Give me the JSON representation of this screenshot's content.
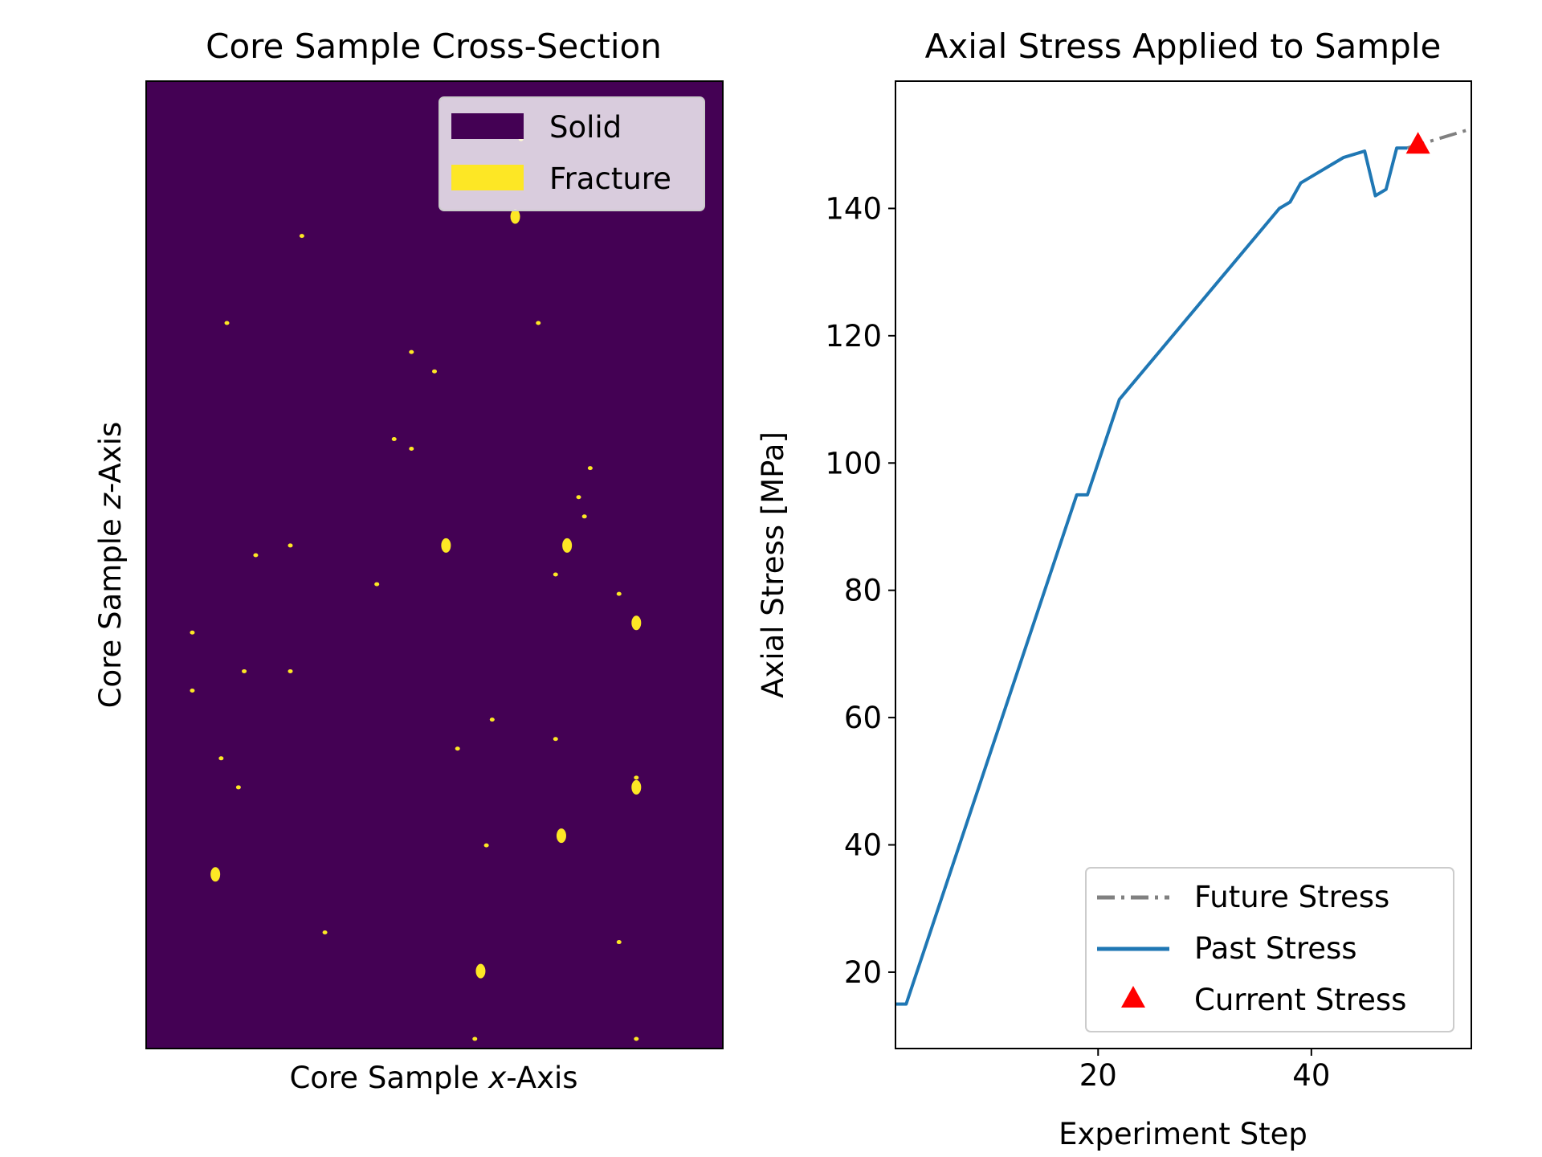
{
  "chart_data": [
    {
      "type": "heatmap",
      "title": "Core Sample Cross-Section",
      "xlabel_pre": "Core Sample ",
      "xlabel_var": "x",
      "xlabel_post": "-Axis",
      "ylabel_pre": "Core Sample ",
      "ylabel_var": "z",
      "ylabel_post": "-Axis",
      "colors": {
        "solid": "#440154",
        "fracture": "#fde725"
      },
      "legend": {
        "position": "top-right",
        "items": [
          {
            "label": "Solid",
            "color": "#440154"
          },
          {
            "label": "Fracture",
            "color": "#fde725"
          }
        ]
      },
      "fracture_fraction_note": "",
      "fracture_spots": [
        [
          0.56,
          0.05
        ],
        [
          0.65,
          0.06
        ],
        [
          0.64,
          0.14
        ],
        [
          0.27,
          0.16
        ],
        [
          0.14,
          0.25
        ],
        [
          0.46,
          0.38
        ],
        [
          0.5,
          0.3
        ],
        [
          0.77,
          0.4
        ],
        [
          0.75,
          0.43
        ],
        [
          0.73,
          0.48
        ],
        [
          0.17,
          0.61
        ],
        [
          0.52,
          0.48
        ],
        [
          0.71,
          0.51
        ],
        [
          0.13,
          0.7
        ],
        [
          0.16,
          0.73
        ],
        [
          0.31,
          0.88
        ],
        [
          0.58,
          0.92
        ],
        [
          0.85,
          0.56
        ],
        [
          0.08,
          0.63
        ],
        [
          0.59,
          0.79
        ],
        [
          0.08,
          0.57
        ],
        [
          0.43,
          0.37
        ],
        [
          0.68,
          0.25
        ],
        [
          0.12,
          0.82
        ],
        [
          0.25,
          0.48
        ],
        [
          0.19,
          0.49
        ],
        [
          0.25,
          0.61
        ],
        [
          0.71,
          0.68
        ],
        [
          0.54,
          0.69
        ],
        [
          0.46,
          0.28
        ],
        [
          0.72,
          0.78
        ],
        [
          0.85,
          0.72
        ],
        [
          0.82,
          0.89
        ],
        [
          0.6,
          0.66
        ],
        [
          0.76,
          0.45
        ],
        [
          0.82,
          0.53
        ],
        [
          0.57,
          0.99
        ],
        [
          0.85,
          0.73
        ],
        [
          0.85,
          0.99
        ],
        [
          0.4,
          0.52
        ]
      ]
    },
    {
      "type": "line",
      "title": "Axial Stress Applied to Sample",
      "xlabel": "Experiment Step",
      "ylabel": "Axial Stress [MPa]",
      "xlim": [
        1,
        55
      ],
      "ylim": [
        8,
        160
      ],
      "xticks": [
        20,
        40
      ],
      "yticks": [
        20,
        40,
        60,
        80,
        100,
        120,
        140
      ],
      "series": [
        {
          "name": "Future Stress",
          "color": "#808080",
          "style": "dashdot",
          "x": [
            49,
            50,
            51,
            52,
            53,
            54,
            55,
            56
          ],
          "y": [
            149.5,
            150.0,
            150.5,
            151.0,
            151.5,
            152.0,
            152.5,
            153.0
          ]
        },
        {
          "name": "Past Stress",
          "color": "#1f77b4",
          "style": "solid",
          "x": [
            1,
            2,
            18,
            19,
            22,
            37,
            38,
            39,
            43,
            45,
            46,
            47,
            48,
            49
          ],
          "y": [
            15,
            15,
            95,
            95,
            110,
            140,
            141,
            144,
            148,
            149,
            142,
            143,
            149.5,
            149.5
          ]
        }
      ],
      "current": {
        "name": "Current Stress",
        "x": 50,
        "y": 150,
        "color": "#ff0000",
        "marker": "triangle"
      },
      "legend": {
        "position": "lower-right"
      }
    }
  ]
}
